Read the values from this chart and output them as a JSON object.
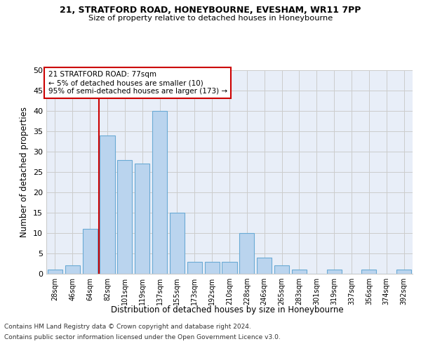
{
  "title1": "21, STRATFORD ROAD, HONEYBOURNE, EVESHAM, WR11 7PP",
  "title2": "Size of property relative to detached houses in Honeybourne",
  "xlabel": "Distribution of detached houses by size in Honeybourne",
  "ylabel": "Number of detached properties",
  "footer1": "Contains HM Land Registry data © Crown copyright and database right 2024.",
  "footer2": "Contains public sector information licensed under the Open Government Licence v3.0.",
  "annotation_title": "21 STRATFORD ROAD: 77sqm",
  "annotation_line1": "← 5% of detached houses are smaller (10)",
  "annotation_line2": "95% of semi-detached houses are larger (173) →",
  "property_sqm": 77,
  "bar_color": "#bad4ee",
  "bar_edge_color": "#6aaad4",
  "vline_color": "#cc0000",
  "annotation_box_color": "#cc0000",
  "grid_color": "#cccccc",
  "bg_color": "#e8eef8",
  "categories": [
    "28sqm",
    "46sqm",
    "64sqm",
    "82sqm",
    "101sqm",
    "119sqm",
    "137sqm",
    "155sqm",
    "173sqm",
    "192sqm",
    "210sqm",
    "228sqm",
    "246sqm",
    "265sqm",
    "283sqm",
    "301sqm",
    "319sqm",
    "337sqm",
    "356sqm",
    "374sqm",
    "392sqm"
  ],
  "n_bins": 21,
  "values": [
    1,
    2,
    11,
    34,
    28,
    27,
    40,
    15,
    3,
    3,
    3,
    10,
    4,
    2,
    1,
    0,
    1,
    0,
    1,
    0,
    1
  ],
  "ylim": [
    0,
    50
  ],
  "yticks": [
    0,
    5,
    10,
    15,
    20,
    25,
    30,
    35,
    40,
    45,
    50
  ],
  "vline_bin_index": 3
}
